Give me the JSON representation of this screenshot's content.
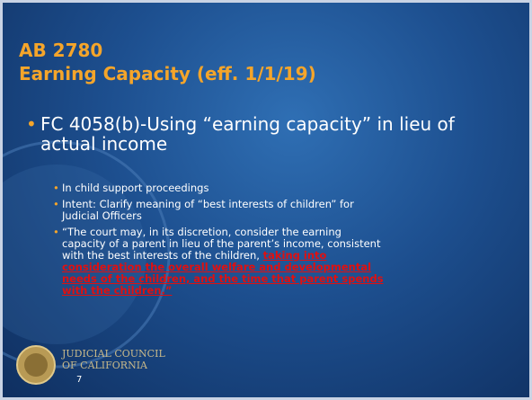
{
  "title": {
    "line1": "AB 2780",
    "line2": "Earning Capacity (eff. 1/1/19)"
  },
  "bullet": "FC 4058(b)-Using “earning capacity” in lieu of actual income",
  "subbullets": [
    "In child support proceedings",
    "Intent: Clarify meaning of “best interests of children” for Judicial Officers"
  ],
  "quote": {
    "plain": "“The court may, in its discretion, consider the earning capacity of a parent in lieu of the parent’s income, consistent with the best interests of the children, ",
    "emphasis": "taking into consideration the overall welfare and developmental needs of the children, and the time that parent spends with the children.”"
  },
  "footer": {
    "line1": "JUDICIAL COUNCIL",
    "line2": "OF CALIFORNIA"
  },
  "page_number": "7"
}
